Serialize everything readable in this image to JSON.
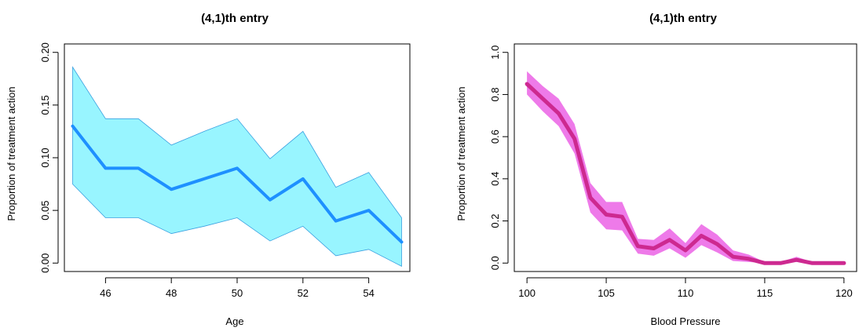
{
  "chart_data": [
    {
      "type": "area",
      "title": "(4,1)th entry",
      "xlabel": "Age",
      "ylabel": "Proportion of treatment action",
      "xlim": [
        44.75,
        55.25
      ],
      "ylim": [
        -0.008,
        0.208
      ],
      "xticks": [
        46,
        48,
        50,
        52,
        54
      ],
      "xtick_labels": [
        "46",
        "48",
        "50",
        "52",
        "54"
      ],
      "yticks": [
        0,
        0.05,
        0.1,
        0.15,
        0.2
      ],
      "ytick_labels": [
        "0.00",
        "0.05",
        "0.10",
        "0.15",
        "0.20"
      ],
      "grid": false,
      "line_color": "#1e90ff",
      "band_color": "#98f5ff",
      "series": [
        {
          "x": [
            45,
            46,
            47,
            48,
            49,
            50,
            51,
            52,
            53,
            54,
            55
          ],
          "values": [
            0.13,
            0.09,
            0.09,
            0.07,
            0.08,
            0.09,
            0.06,
            0.08,
            0.04,
            0.05,
            0.02
          ],
          "lower": [
            0.075,
            0.043,
            0.043,
            0.028,
            0.035,
            0.043,
            0.021,
            0.035,
            0.007,
            0.013,
            -0.003
          ],
          "upper": [
            0.186,
            0.137,
            0.137,
            0.112,
            0.125,
            0.137,
            0.099,
            0.125,
            0.072,
            0.086,
            0.043
          ]
        }
      ]
    },
    {
      "type": "area",
      "title": "(4,1)th entry",
      "xlabel": "Blood Pressure",
      "ylabel": "Proportion of treatment action",
      "xlim": [
        99.2,
        120.8
      ],
      "ylim": [
        -0.04,
        1.04
      ],
      "xticks": [
        100,
        105,
        110,
        115,
        120
      ],
      "xtick_labels": [
        "100",
        "105",
        "110",
        "115",
        "120"
      ],
      "yticks": [
        0,
        0.2,
        0.4,
        0.6,
        0.8,
        1.0
      ],
      "ytick_labels": [
        "0.0",
        "0.2",
        "0.4",
        "0.6",
        "0.8",
        "1.0"
      ],
      "grid": false,
      "line_color": "#cd2990",
      "band_color": "#ee7ae9",
      "series": [
        {
          "x": [
            100,
            101,
            102,
            103,
            104,
            105,
            106,
            107,
            108,
            109,
            110,
            111,
            112,
            113,
            114,
            115,
            116,
            117,
            118,
            119,
            120
          ],
          "values": [
            0.85,
            0.78,
            0.71,
            0.59,
            0.31,
            0.23,
            0.22,
            0.08,
            0.07,
            0.11,
            0.06,
            0.13,
            0.09,
            0.03,
            0.02,
            0.0,
            0.0,
            0.015,
            0.0,
            0.0,
            0.0
          ],
          "lower": [
            0.8,
            0.72,
            0.65,
            0.52,
            0.24,
            0.16,
            0.155,
            0.045,
            0.035,
            0.07,
            0.025,
            0.085,
            0.05,
            0.01,
            0.005,
            0.0,
            0.0,
            0.005,
            0.0,
            0.0,
            0.0
          ],
          "upper": [
            0.91,
            0.84,
            0.78,
            0.66,
            0.38,
            0.29,
            0.29,
            0.115,
            0.11,
            0.165,
            0.095,
            0.185,
            0.135,
            0.06,
            0.04,
            0.005,
            0.005,
            0.03,
            0.005,
            0.0,
            0.0
          ]
        }
      ]
    }
  ]
}
